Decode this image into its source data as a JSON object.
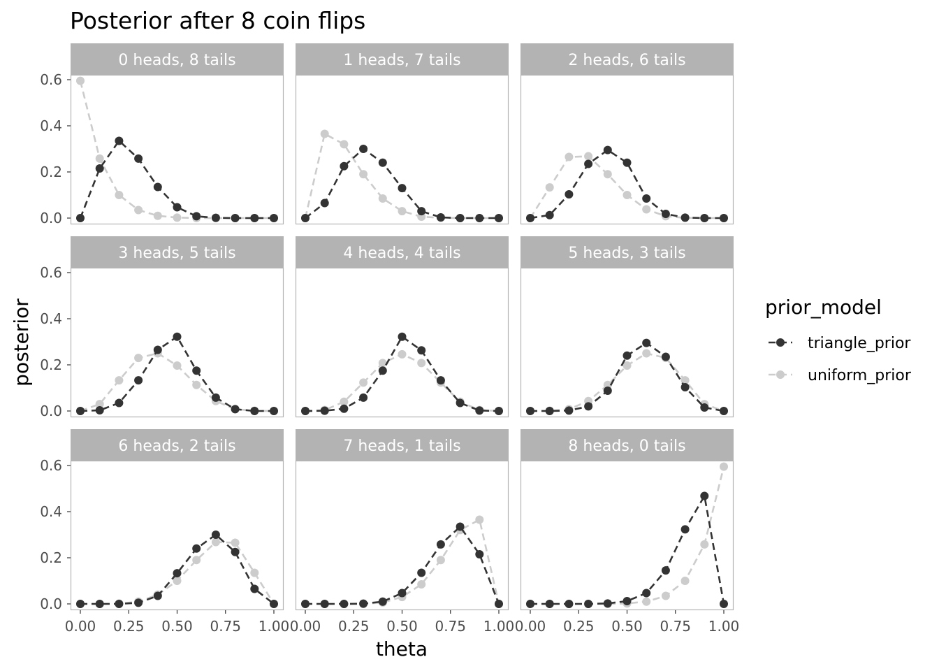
{
  "chart_data": {
    "type": "line",
    "title": "Posterior after 8 coin flips",
    "xlabel": "theta",
    "ylabel": "posterior",
    "xlim": [
      0,
      1
    ],
    "ylim": [
      0,
      0.6
    ],
    "x_ticks": [
      0,
      0.25,
      0.5,
      0.75,
      1
    ],
    "x_tick_labels": [
      "0.00",
      "0.25",
      "0.50",
      "0.75",
      "1.00"
    ],
    "y_ticks": [
      0,
      0.2,
      0.4,
      0.6
    ],
    "y_tick_labels": [
      "0.0",
      "0.2",
      "0.4",
      "0.6"
    ],
    "x": [
      0,
      0.1,
      0.2,
      0.3,
      0.4,
      0.5,
      0.6,
      0.7,
      0.8,
      0.9,
      1.0
    ],
    "grid": false,
    "legend": {
      "title": "prior_model",
      "placement": "right",
      "entries": [
        "triangle_prior",
        "uniform_prior"
      ]
    },
    "colors": {
      "triangle_prior": "#333333",
      "uniform_prior": "#cccccc",
      "strip": "#b3b3b3",
      "panel_border": "#b3b3b3"
    },
    "panels": [
      {
        "label": "0 heads, 8 tails",
        "series": [
          {
            "name": "triangle_prior",
            "values": [
              0,
              0.215,
              0.335,
              0.258,
              0.135,
              0.047,
              0.008,
              0.001,
              0,
              0,
              0
            ]
          },
          {
            "name": "uniform_prior",
            "values": [
              0.595,
              0.258,
              0.1,
              0.035,
              0.01,
              0.002,
              0,
              0,
              0,
              0,
              0
            ]
          }
        ]
      },
      {
        "label": "1 heads, 7 tails",
        "series": [
          {
            "name": "triangle_prior",
            "values": [
              0,
              0.065,
              0.225,
              0.3,
              0.24,
              0.13,
              0.03,
              0.003,
              0,
              0,
              0
            ]
          },
          {
            "name": "uniform_prior",
            "values": [
              0,
              0.365,
              0.32,
              0.19,
              0.085,
              0.03,
              0.006,
              0.001,
              0,
              0,
              0
            ]
          }
        ]
      },
      {
        "label": "2 heads, 6 tails",
        "series": [
          {
            "name": "triangle_prior",
            "values": [
              0,
              0.013,
              0.103,
              0.235,
              0.295,
              0.24,
              0.085,
              0.018,
              0.002,
              0,
              0
            ]
          },
          {
            "name": "uniform_prior",
            "values": [
              0,
              0.133,
              0.265,
              0.268,
              0.19,
              0.1,
              0.038,
              0.008,
              0.001,
              0,
              0
            ]
          }
        ]
      },
      {
        "label": "3 heads, 5 tails",
        "series": [
          {
            "name": "triangle_prior",
            "values": [
              0,
              0.003,
              0.035,
              0.133,
              0.265,
              0.322,
              0.175,
              0.058,
              0.008,
              0,
              0
            ]
          },
          {
            "name": "uniform_prior",
            "values": [
              0,
              0.03,
              0.133,
              0.23,
              0.25,
              0.197,
              0.113,
              0.043,
              0.008,
              0.001,
              0
            ]
          }
        ]
      },
      {
        "label": "4 heads, 4 tails",
        "series": [
          {
            "name": "triangle_prior",
            "values": [
              0,
              0.001,
              0.01,
              0.058,
              0.175,
              0.322,
              0.263,
              0.133,
              0.035,
              0.002,
              0
            ]
          },
          {
            "name": "uniform_prior",
            "values": [
              0,
              0.004,
              0.04,
              0.123,
              0.208,
              0.246,
              0.208,
              0.123,
              0.04,
              0.004,
              0
            ]
          }
        ]
      },
      {
        "label": "5 heads, 3 tails",
        "series": [
          {
            "name": "triangle_prior",
            "values": [
              0,
              0,
              0.002,
              0.02,
              0.088,
              0.24,
              0.295,
              0.235,
              0.103,
              0.015,
              0
            ]
          },
          {
            "name": "uniform_prior",
            "values": [
              0,
              0.001,
              0.008,
              0.043,
              0.113,
              0.197,
              0.25,
              0.23,
              0.133,
              0.03,
              0
            ]
          }
        ]
      },
      {
        "label": "6 heads, 2 tails",
        "series": [
          {
            "name": "triangle_prior",
            "values": [
              0,
              0,
              0,
              0.005,
              0.035,
              0.133,
              0.24,
              0.3,
              0.225,
              0.065,
              0
            ]
          },
          {
            "name": "uniform_prior",
            "values": [
              0,
              0,
              0.001,
              0.01,
              0.04,
              0.1,
              0.19,
              0.268,
              0.265,
              0.135,
              0
            ]
          }
        ]
      },
      {
        "label": "7 heads, 1 tails",
        "series": [
          {
            "name": "triangle_prior",
            "values": [
              0,
              0,
              0,
              0.001,
              0.01,
              0.047,
              0.135,
              0.258,
              0.335,
              0.215,
              0
            ]
          },
          {
            "name": "uniform_prior",
            "values": [
              0,
              0,
              0,
              0,
              0.006,
              0.03,
              0.085,
              0.19,
              0.32,
              0.365,
              0
            ]
          }
        ]
      },
      {
        "label": "8 heads, 0 tails",
        "series": [
          {
            "name": "triangle_prior",
            "values": [
              0,
              0,
              0,
              0,
              0.002,
              0.012,
              0.047,
              0.145,
              0.323,
              0.468,
              0
            ]
          },
          {
            "name": "uniform_prior",
            "values": [
              0,
              0,
              0,
              0,
              0,
              0.002,
              0.01,
              0.035,
              0.1,
              0.258,
              0.595
            ]
          }
        ]
      }
    ]
  }
}
